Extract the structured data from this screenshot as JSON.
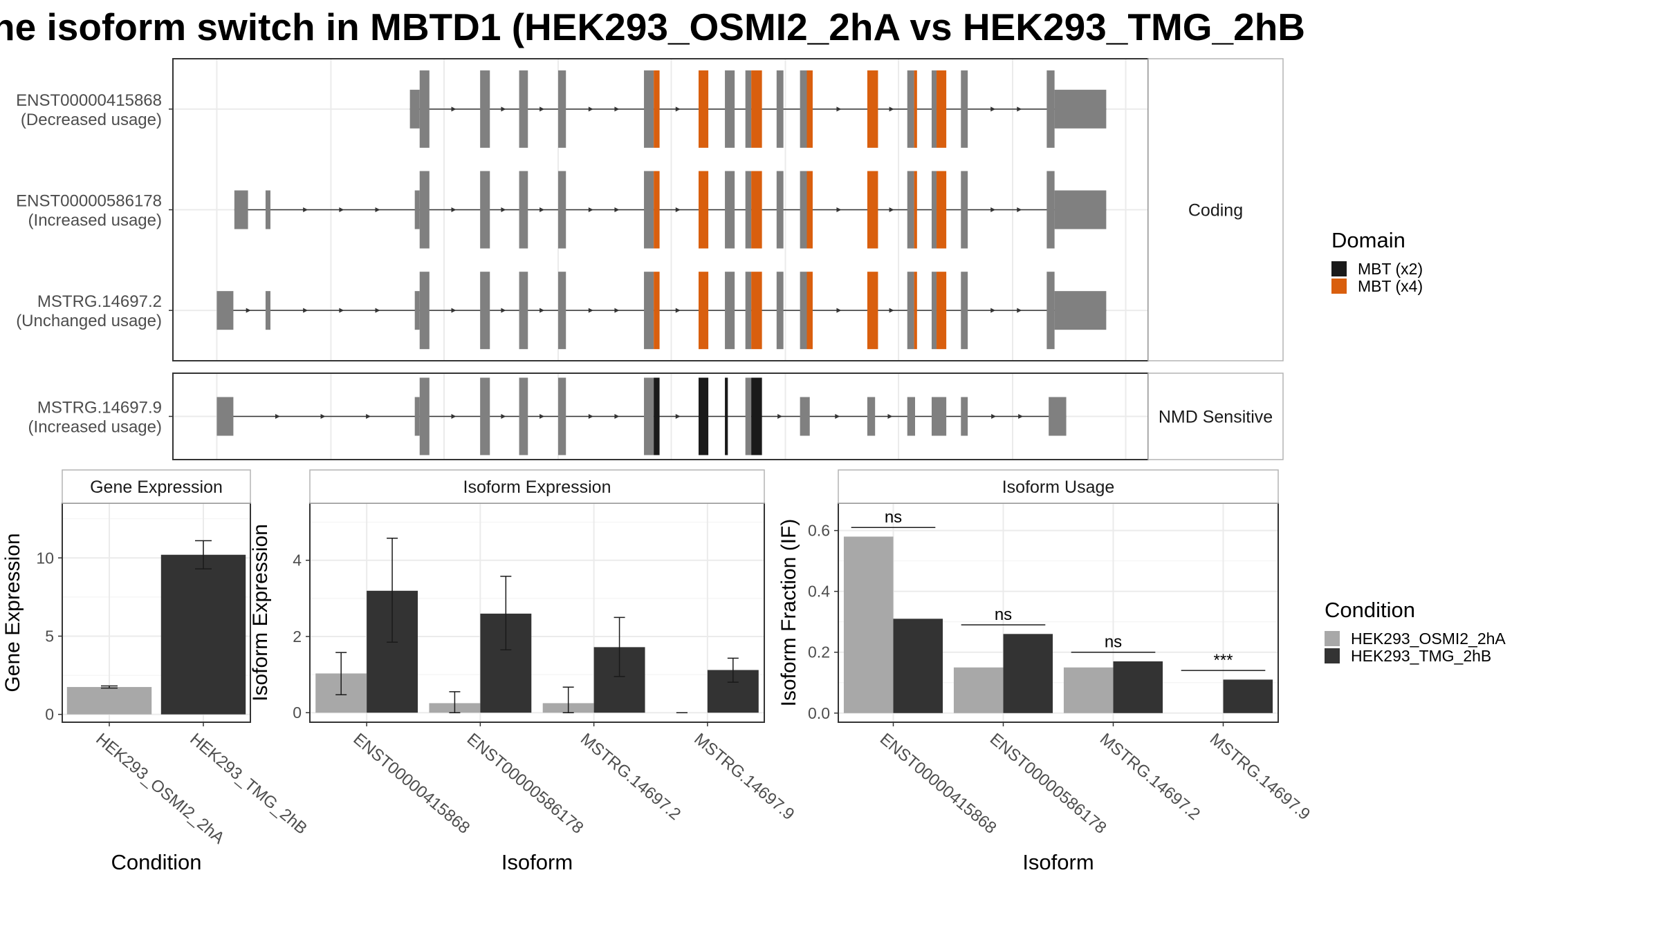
{
  "title": "he isoform switch in MBTD1 (HEK293_OSMI2_2hA vs HEK293_TMG_2hB",
  "structure": {
    "x_range": [
      0,
      100
    ],
    "panels": [
      {
        "strip": "Coding",
        "isoforms": [
          {
            "id": "ENST00000415868",
            "usage": "(Decreased usage)",
            "start": 24.3,
            "end": 95.7,
            "exons": [
              {
                "s": 24.3,
                "e": 25.3,
                "t": "utr"
              },
              {
                "s": 25.3,
                "e": 26.3,
                "t": "cds"
              },
              {
                "s": 31.5,
                "e": 32.5,
                "t": "cds"
              },
              {
                "s": 35.5,
                "e": 36.4,
                "t": "cds"
              },
              {
                "s": 39.5,
                "e": 40.3,
                "t": "cds"
              },
              {
                "s": 48.3,
                "e": 49.3,
                "t": "cds"
              },
              {
                "s": 49.3,
                "e": 49.9,
                "t": "mbt4"
              },
              {
                "s": 53.9,
                "e": 54.9,
                "t": "mbt4"
              },
              {
                "s": 56.6,
                "e": 57.6,
                "t": "cds"
              },
              {
                "s": 58.7,
                "e": 59.3,
                "t": "cds"
              },
              {
                "s": 59.3,
                "e": 60.4,
                "t": "mbt4"
              },
              {
                "s": 61.9,
                "e": 62.6,
                "t": "cds"
              },
              {
                "s": 64.3,
                "e": 65.0,
                "t": "cds"
              },
              {
                "s": 65.0,
                "e": 65.6,
                "t": "mbt4"
              },
              {
                "s": 71.2,
                "e": 72.3,
                "t": "mbt4"
              },
              {
                "s": 75.3,
                "e": 76.0,
                "t": "cds"
              },
              {
                "s": 76.0,
                "e": 76.3,
                "t": "mbt4"
              },
              {
                "s": 77.8,
                "e": 78.3,
                "t": "cds"
              },
              {
                "s": 78.3,
                "e": 79.3,
                "t": "mbt4"
              },
              {
                "s": 80.8,
                "e": 81.5,
                "t": "cds"
              },
              {
                "s": 89.6,
                "e": 90.4,
                "t": "cds"
              },
              {
                "s": 90.4,
                "e": 95.7,
                "t": "utr"
              }
            ]
          },
          {
            "id": "ENST00000586178",
            "usage": "(Increased usage)",
            "start": 6.3,
            "end": 95.7,
            "exons": [
              {
                "s": 6.3,
                "e": 7.7,
                "t": "utr"
              },
              {
                "s": 9.5,
                "e": 10.0,
                "t": "utr"
              },
              {
                "s": 24.8,
                "e": 25.3,
                "t": "utr"
              },
              {
                "s": 25.3,
                "e": 26.3,
                "t": "cds"
              },
              {
                "s": 31.5,
                "e": 32.5,
                "t": "cds"
              },
              {
                "s": 35.5,
                "e": 36.4,
                "t": "cds"
              },
              {
                "s": 39.5,
                "e": 40.3,
                "t": "cds"
              },
              {
                "s": 48.3,
                "e": 49.3,
                "t": "cds"
              },
              {
                "s": 49.3,
                "e": 49.9,
                "t": "mbt4"
              },
              {
                "s": 53.9,
                "e": 54.9,
                "t": "mbt4"
              },
              {
                "s": 56.6,
                "e": 57.6,
                "t": "cds"
              },
              {
                "s": 58.7,
                "e": 59.3,
                "t": "cds"
              },
              {
                "s": 59.3,
                "e": 60.4,
                "t": "mbt4"
              },
              {
                "s": 61.9,
                "e": 62.6,
                "t": "cds"
              },
              {
                "s": 64.3,
                "e": 65.0,
                "t": "cds"
              },
              {
                "s": 65.0,
                "e": 65.6,
                "t": "mbt4"
              },
              {
                "s": 71.2,
                "e": 72.3,
                "t": "mbt4"
              },
              {
                "s": 75.3,
                "e": 76.0,
                "t": "cds"
              },
              {
                "s": 76.0,
                "e": 76.3,
                "t": "mbt4"
              },
              {
                "s": 77.8,
                "e": 78.3,
                "t": "cds"
              },
              {
                "s": 78.3,
                "e": 79.3,
                "t": "mbt4"
              },
              {
                "s": 80.8,
                "e": 81.5,
                "t": "cds"
              },
              {
                "s": 89.6,
                "e": 90.4,
                "t": "cds"
              },
              {
                "s": 90.4,
                "e": 95.7,
                "t": "utr"
              }
            ]
          },
          {
            "id": "MSTRG.14697.2",
            "usage": "(Unchanged usage)",
            "start": 4.5,
            "end": 95.7,
            "exons": [
              {
                "s": 4.5,
                "e": 6.2,
                "t": "utr"
              },
              {
                "s": 9.5,
                "e": 10.0,
                "t": "utr"
              },
              {
                "s": 24.8,
                "e": 25.3,
                "t": "utr"
              },
              {
                "s": 25.3,
                "e": 26.3,
                "t": "cds"
              },
              {
                "s": 31.5,
                "e": 32.5,
                "t": "cds"
              },
              {
                "s": 35.5,
                "e": 36.4,
                "t": "cds"
              },
              {
                "s": 39.5,
                "e": 40.3,
                "t": "cds"
              },
              {
                "s": 48.3,
                "e": 49.3,
                "t": "cds"
              },
              {
                "s": 49.3,
                "e": 49.9,
                "t": "mbt4"
              },
              {
                "s": 53.9,
                "e": 54.9,
                "t": "mbt4"
              },
              {
                "s": 56.6,
                "e": 57.6,
                "t": "cds"
              },
              {
                "s": 58.7,
                "e": 59.3,
                "t": "cds"
              },
              {
                "s": 59.3,
                "e": 60.4,
                "t": "mbt4"
              },
              {
                "s": 61.9,
                "e": 62.6,
                "t": "cds"
              },
              {
                "s": 64.3,
                "e": 65.0,
                "t": "cds"
              },
              {
                "s": 65.0,
                "e": 65.6,
                "t": "mbt4"
              },
              {
                "s": 71.2,
                "e": 72.3,
                "t": "mbt4"
              },
              {
                "s": 75.3,
                "e": 76.0,
                "t": "cds"
              },
              {
                "s": 76.0,
                "e": 76.3,
                "t": "mbt4"
              },
              {
                "s": 77.8,
                "e": 78.3,
                "t": "cds"
              },
              {
                "s": 78.3,
                "e": 79.3,
                "t": "mbt4"
              },
              {
                "s": 80.8,
                "e": 81.5,
                "t": "cds"
              },
              {
                "s": 89.6,
                "e": 90.4,
                "t": "cds"
              },
              {
                "s": 90.4,
                "e": 95.7,
                "t": "utr"
              }
            ]
          }
        ]
      },
      {
        "strip": "NMD Sensitive",
        "isoforms": [
          {
            "id": "MSTRG.14697.9",
            "usage": "(Increased usage)",
            "start": 4.5,
            "end": 91.6,
            "exons": [
              {
                "s": 4.5,
                "e": 6.2,
                "t": "utr"
              },
              {
                "s": 24.8,
                "e": 25.3,
                "t": "utr"
              },
              {
                "s": 25.3,
                "e": 26.3,
                "t": "cds"
              },
              {
                "s": 31.5,
                "e": 32.5,
                "t": "cds"
              },
              {
                "s": 35.5,
                "e": 36.4,
                "t": "cds"
              },
              {
                "s": 39.5,
                "e": 40.3,
                "t": "cds"
              },
              {
                "s": 48.3,
                "e": 49.3,
                "t": "cds"
              },
              {
                "s": 49.3,
                "e": 49.9,
                "t": "mbt2"
              },
              {
                "s": 53.9,
                "e": 54.9,
                "t": "mbt2"
              },
              {
                "s": 56.6,
                "e": 56.9,
                "t": "mbt2"
              },
              {
                "s": 58.7,
                "e": 59.3,
                "t": "cds"
              },
              {
                "s": 59.3,
                "e": 60.4,
                "t": "mbt2"
              },
              {
                "s": 64.3,
                "e": 65.3,
                "t": "utr"
              },
              {
                "s": 71.2,
                "e": 72.0,
                "t": "utr"
              },
              {
                "s": 75.3,
                "e": 76.1,
                "t": "utr"
              },
              {
                "s": 77.8,
                "e": 79.3,
                "t": "utr"
              },
              {
                "s": 80.8,
                "e": 81.5,
                "t": "utr"
              },
              {
                "s": 89.8,
                "e": 91.6,
                "t": "utr"
              }
            ]
          }
        ]
      }
    ]
  },
  "legend_domain": {
    "title": "Domain",
    "items": [
      {
        "label": "MBT (x2)",
        "color": "#1a1a1a"
      },
      {
        "label": "MBT (x4)",
        "color": "#d95f0e"
      }
    ]
  },
  "legend_condition": {
    "title": "Condition",
    "items": [
      {
        "label": "HEK293_OSMI2_2hA",
        "color": "#a8a8a8"
      },
      {
        "label": "HEK293_TMG_2hB",
        "color": "#333333"
      }
    ]
  },
  "colors": {
    "utr": "#808080",
    "cds": "#808080",
    "mbt2": "#1a1a1a",
    "mbt4": "#d95f0e",
    "cond_a": "#a8a8a8",
    "cond_b": "#333333"
  },
  "chart_data": [
    {
      "type": "bar",
      "strip": "Gene Expression",
      "xlabel": "Condition",
      "ylabel": "Gene Expression",
      "ylim": [
        -0.5,
        13.5
      ],
      "yticks": [
        0,
        5,
        10
      ],
      "categories": [
        "HEK293_OSMI2_2hA",
        "HEK293_TMG_2hB"
      ],
      "values": [
        1.75,
        10.2
      ],
      "errors": [
        [
          1.68,
          1.82
        ],
        [
          9.3,
          11.1
        ]
      ],
      "series_colors": [
        "#a8a8a8",
        "#333333"
      ]
    },
    {
      "type": "bar",
      "strip": "Isoform Expression",
      "xlabel": "Isoform",
      "ylabel": "Isoform Expression",
      "ylim": [
        -0.25,
        5.5
      ],
      "yticks": [
        0,
        2,
        4
      ],
      "categories": [
        "ENST00000415868",
        "ENST00000586178",
        "MSTRG.14697.2",
        "MSTRG.14697.9"
      ],
      "series": [
        {
          "name": "HEK293_OSMI2_2hA",
          "values": [
            1.03,
            0.25,
            0.25,
            0.0
          ],
          "errors": [
            [
              0.47,
              1.58
            ],
            [
              0.0,
              0.55
            ],
            [
              0.0,
              0.67
            ],
            [
              0.0,
              0.0
            ]
          ]
        },
        {
          "name": "HEK293_TMG_2hB",
          "values": [
            3.2,
            2.6,
            1.72,
            1.12
          ],
          "errors": [
            [
              1.85,
              4.58
            ],
            [
              1.65,
              3.58
            ],
            [
              0.95,
              2.5
            ],
            [
              0.8,
              1.43
            ]
          ]
        }
      ]
    },
    {
      "type": "bar",
      "strip": "Isoform Usage",
      "xlabel": "Isoform",
      "ylabel": "Isoform Fraction (IF)",
      "ylim": [
        -0.03,
        0.69
      ],
      "yticks": [
        0.0,
        0.2,
        0.4,
        0.6
      ],
      "ytick_labels": [
        "0.0",
        "0.2",
        "0.4",
        "0.6"
      ],
      "categories": [
        "ENST00000415868",
        "ENST00000586178",
        "MSTRG.14697.2",
        "MSTRG.14697.9"
      ],
      "series": [
        {
          "name": "HEK293_OSMI2_2hA",
          "values": [
            0.58,
            0.15,
            0.15,
            0.0
          ]
        },
        {
          "name": "HEK293_TMG_2hB",
          "values": [
            0.31,
            0.26,
            0.17,
            0.11
          ]
        }
      ],
      "significance": [
        "ns",
        "ns",
        "ns",
        "***"
      ],
      "sig_y": [
        0.61,
        0.29,
        0.2,
        0.14
      ]
    }
  ]
}
